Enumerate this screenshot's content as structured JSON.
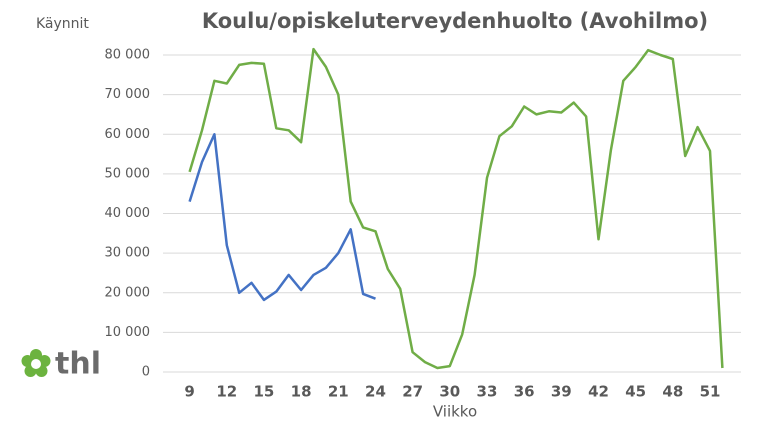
{
  "chart_data": {
    "type": "line",
    "title": "Koulu/opiskeluterveydenhuolto (Avohilmo)",
    "y_label": "Käynnit",
    "x_label": "Viikko",
    "logo": "thl",
    "x": [
      9,
      10,
      11,
      12,
      13,
      14,
      15,
      16,
      17,
      18,
      19,
      20,
      21,
      22,
      23,
      24,
      25,
      26,
      27,
      28,
      29,
      30,
      31,
      32,
      33,
      34,
      35,
      36,
      37,
      38,
      39,
      40,
      41,
      42,
      43,
      44,
      45,
      46,
      47,
      48,
      49,
      50,
      51,
      52
    ],
    "series": [
      {
        "color": "#70ad47",
        "values": [
          50500,
          61000,
          73500,
          72800,
          77500,
          78000,
          77800,
          61500,
          61000,
          58000,
          81500,
          77000,
          70000,
          43000,
          36500,
          35500,
          26000,
          21000,
          5000,
          2500,
          1000,
          1500,
          9500,
          24500,
          49000,
          59500,
          62000,
          67000,
          65000,
          65800,
          65500,
          68000,
          64500,
          33500,
          56000,
          73500,
          77000,
          81200,
          80000,
          79000,
          54500,
          61800,
          55800,
          1000
        ]
      },
      {
        "color": "#4472c4",
        "values": [
          43000,
          53000,
          60000,
          32000,
          20000,
          22500,
          18200,
          20300,
          24500,
          20700,
          24500,
          26300,
          30000,
          36000,
          19700,
          18500,
          null,
          null,
          null,
          null,
          null,
          null,
          null,
          null,
          null,
          null,
          null,
          null,
          null,
          null,
          null,
          null,
          null,
          null,
          null,
          null,
          null,
          null,
          null,
          null,
          null,
          null,
          null,
          null
        ]
      }
    ],
    "xlim": [
      7.5,
      53.5
    ],
    "xticks": [
      9,
      12,
      15,
      18,
      21,
      24,
      27,
      30,
      33,
      36,
      39,
      42,
      45,
      48,
      51
    ],
    "ylim": [
      0,
      80000
    ],
    "yticks": [
      0,
      {
        "value": 10000,
        "label": "10 000"
      },
      {
        "value": 20000,
        "label": "20 000"
      },
      {
        "value": 30000,
        "label": "30 000"
      },
      {
        "value": 40000,
        "label": "40 000"
      },
      {
        "value": 50000,
        "label": "50 000"
      },
      {
        "value": 60000,
        "label": "60 000"
      },
      {
        "value": 70000,
        "label": "70 000"
      },
      {
        "value": 80000,
        "label": "80 000"
      }
    ],
    "grid": true
  }
}
